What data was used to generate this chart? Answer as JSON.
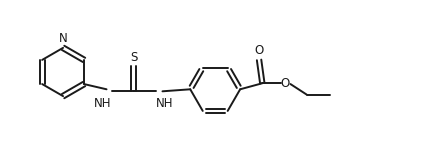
{
  "background_color": "#ffffff",
  "line_color": "#1a1a1a",
  "line_width": 1.4,
  "font_size": 8.5,
  "figsize": [
    4.24,
    1.48
  ],
  "dpi": 100,
  "xlim": [
    0,
    10.5
  ],
  "ylim": [
    0.2,
    3.8
  ]
}
